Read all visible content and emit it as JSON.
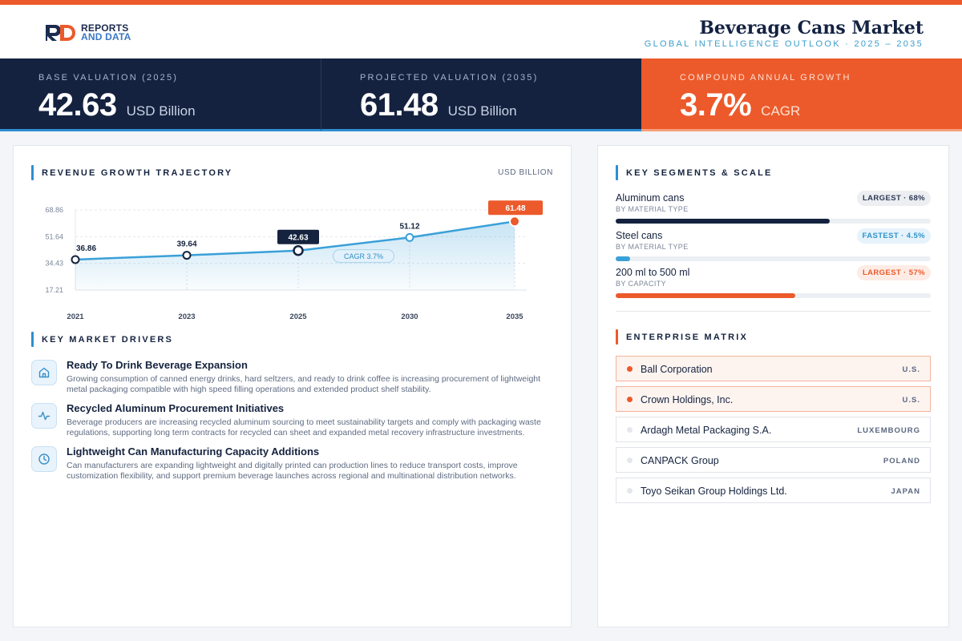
{
  "brand": {
    "line1": "REPORTS",
    "line2": "AND DATA"
  },
  "header": {
    "title": "Beverage Cans Market",
    "subtitle": "GLOBAL INTELLIGENCE OUTLOOK  ·  2025 – 2035"
  },
  "kpis": [
    {
      "label": "BASE VALUATION (2025)",
      "value": "42.63",
      "unit": "USD Billion"
    },
    {
      "label": "PROJECTED VALUATION (2035)",
      "value": "61.48",
      "unit": "USD Billion"
    },
    {
      "label": "COMPOUND ANNUAL GROWTH",
      "value": "3.7%",
      "unit": "CAGR"
    }
  ],
  "chart_section": {
    "title": "REVENUE GROWTH TRAJECTORY",
    "unit": "USD BILLION"
  },
  "chart_data": {
    "type": "area",
    "categories": [
      "2021",
      "2023",
      "2025",
      "2030",
      "2035"
    ],
    "values": [
      36.86,
      39.64,
      42.63,
      51.12,
      61.48
    ],
    "value_labels": [
      "36.86",
      "39.64",
      "42.63",
      "51.12",
      "61.48"
    ],
    "yticks": [
      68.86,
      51.64,
      34.43,
      17.21
    ],
    "ytick_labels": [
      "68.86",
      "51.64",
      "34.43",
      "17.21"
    ],
    "ylim": [
      17.21,
      68.86
    ],
    "annotation": "CAGR 3.7%",
    "highlight": {
      "base_index": 2,
      "end_index": 4
    },
    "grid": true,
    "colors": {
      "line": "#3aa0d8",
      "end": "#ec5a2b",
      "base": "#15233f"
    }
  },
  "drivers_section": {
    "title": "KEY MARKET DRIVERS"
  },
  "drivers": [
    {
      "icon": "home-icon",
      "title": "Ready To Drink Beverage Expansion",
      "text": "Growing consumption of canned energy drinks, hard seltzers, and ready to drink coffee is increasing procurement of lightweight metal packaging compatible with high speed filling operations and extended product shelf stability."
    },
    {
      "icon": "activity-icon",
      "title": "Recycled Aluminum Procurement Initiatives",
      "text": "Beverage producers are increasing recycled aluminum sourcing to meet sustainability targets and comply with packaging waste regulations, supporting long term contracts for recycled can sheet and expanded metal recovery infrastructure investments."
    },
    {
      "icon": "clock-icon",
      "title": "Lightweight Can Manufacturing Capacity Additions",
      "text": "Can manufacturers are expanding lightweight and digitally printed can production lines to reduce transport costs, improve customization flexibility, and support premium beverage launches across regional and multinational distribution networks."
    }
  ],
  "segments_section": {
    "title": "KEY SEGMENTS & SCALE"
  },
  "segments": [
    {
      "name": "Aluminum cans",
      "sub": "BY MATERIAL TYPE",
      "badge": "LARGEST · 68%",
      "fill": 0.68,
      "color": "#14223f",
      "badge_style": "gray"
    },
    {
      "name": "Steel cans",
      "sub": "BY MATERIAL TYPE",
      "badge": "FASTEST · 4.5%",
      "fill": 0.045,
      "color": "#3aa0d8",
      "badge_style": "blue"
    },
    {
      "name": "200 ml to 500 ml",
      "sub": "BY CAPACITY",
      "badge": "LARGEST · 57%",
      "fill": 0.57,
      "color": "#ec5a2b",
      "badge_style": "orange"
    }
  ],
  "matrix_section": {
    "title": "ENTERPRISE MATRIX"
  },
  "companies": [
    {
      "name": "Ball Corporation",
      "country": "U.S.",
      "highlight": true
    },
    {
      "name": "Crown Holdings, Inc.",
      "country": "U.S.",
      "highlight": true
    },
    {
      "name": "Ardagh Metal Packaging S.A.",
      "country": "LUXEMBOURG",
      "highlight": false
    },
    {
      "name": "CANPACK Group",
      "country": "POLAND",
      "highlight": false
    },
    {
      "name": "Toyo Seikan Group Holdings Ltd.",
      "country": "JAPAN",
      "highlight": false
    }
  ]
}
